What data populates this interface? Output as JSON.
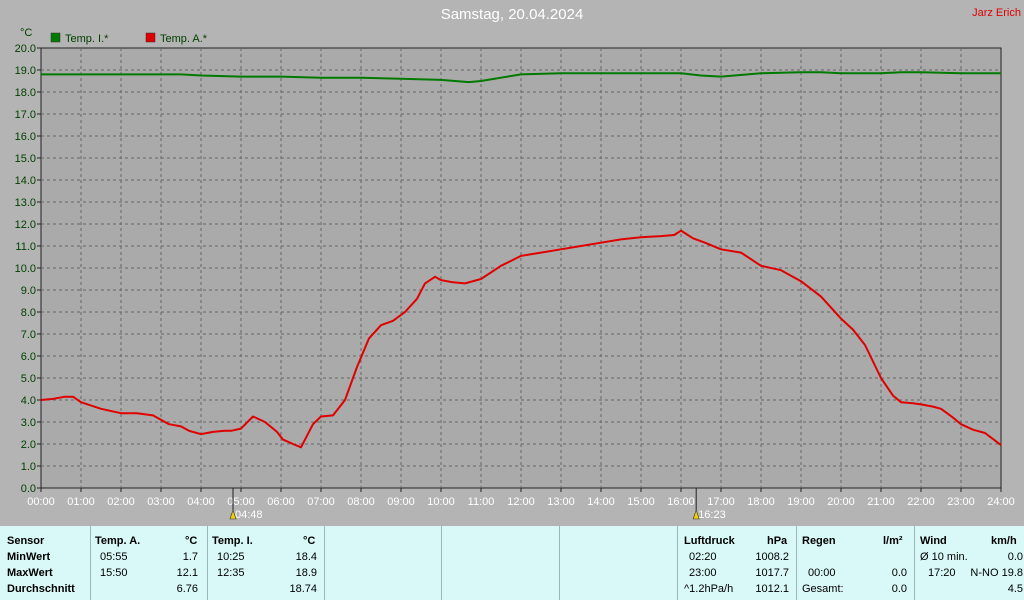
{
  "title": "Samstag, 20.04.2024",
  "author": "Jarz Erich",
  "colors": {
    "background": "#b4b4b4",
    "plot": "#aaaaaa",
    "indoor": "#007a00",
    "outdoor": "#e00000",
    "table": "#d9f8f8"
  },
  "chart_data": {
    "type": "line",
    "ylabel": "°C",
    "ylim": [
      0,
      20
    ],
    "yticks": [
      "0.0",
      "1.0",
      "2.0",
      "3.0",
      "4.0",
      "5.0",
      "6.0",
      "7.0",
      "8.0",
      "9.0",
      "10.0",
      "11.0",
      "12.0",
      "13.0",
      "14.0",
      "15.0",
      "16.0",
      "17.0",
      "18.0",
      "19.0",
      "20.0"
    ],
    "xlim": [
      0,
      24
    ],
    "xticks": [
      "00:00",
      "01:00",
      "02:00",
      "03:00",
      "04:00",
      "05:00",
      "06:00",
      "07:00",
      "08:00",
      "09:00",
      "10:00",
      "11:00",
      "12:00",
      "13:00",
      "14:00",
      "15:00",
      "16:00",
      "17:00",
      "18:00",
      "19:00",
      "20:00",
      "21:00",
      "22:00",
      "23:00",
      "24:00"
    ],
    "grid": true,
    "legend_position": "top-left",
    "sun_markers": [
      {
        "time": 4.8,
        "label": "04:48"
      },
      {
        "time": 16.38,
        "label": "16:23"
      }
    ],
    "series": [
      {
        "name": "Temp. I.*",
        "color": "#007a00",
        "x": [
          0,
          3.5,
          4,
          5,
          6,
          7,
          8,
          9,
          10,
          10.7,
          11,
          12,
          13,
          14,
          15,
          16,
          16.5,
          17,
          18,
          19,
          19.5,
          20,
          21,
          21.5,
          22,
          23,
          24
        ],
        "y": [
          18.8,
          18.8,
          18.75,
          18.7,
          18.7,
          18.65,
          18.65,
          18.6,
          18.55,
          18.45,
          18.5,
          18.8,
          18.85,
          18.85,
          18.85,
          18.85,
          18.75,
          18.7,
          18.85,
          18.9,
          18.9,
          18.85,
          18.85,
          18.9,
          18.9,
          18.85,
          18.85
        ]
      },
      {
        "name": "Temp. A.*",
        "color": "#e00000",
        "x": [
          0,
          0.3,
          0.6,
          0.8,
          1.0,
          1.5,
          2.0,
          2.4,
          2.8,
          3.2,
          3.5,
          3.7,
          4.0,
          4.3,
          4.6,
          4.75,
          5.0,
          5.3,
          5.6,
          5.9,
          6.05,
          6.3,
          6.5,
          6.8,
          7.0,
          7.3,
          7.6,
          7.9,
          8.2,
          8.5,
          8.8,
          9.1,
          9.4,
          9.6,
          9.85,
          10.0,
          10.3,
          10.6,
          11.0,
          11.5,
          12.0,
          12.5,
          13.0,
          13.5,
          14.0,
          14.5,
          15.0,
          15.5,
          15.83,
          16.0,
          16.3,
          16.6,
          17.0,
          17.5,
          18.0,
          18.5,
          19.0,
          19.5,
          20.0,
          20.3,
          20.6,
          21.0,
          21.3,
          21.5,
          21.8,
          22.0,
          22.3,
          22.5,
          22.8,
          23.0,
          23.3,
          23.6,
          24.0
        ],
        "y": [
          4.0,
          4.05,
          4.15,
          4.15,
          3.9,
          3.6,
          3.4,
          3.4,
          3.3,
          2.9,
          2.8,
          2.6,
          2.45,
          2.55,
          2.6,
          2.6,
          2.7,
          3.25,
          3.0,
          2.55,
          2.2,
          2.0,
          1.85,
          2.9,
          3.25,
          3.3,
          4.0,
          5.5,
          6.8,
          7.4,
          7.6,
          8.0,
          8.6,
          9.3,
          9.6,
          9.45,
          9.35,
          9.3,
          9.5,
          10.1,
          10.55,
          10.7,
          10.85,
          11.0,
          11.15,
          11.3,
          11.4,
          11.45,
          11.5,
          11.7,
          11.35,
          11.15,
          10.85,
          10.7,
          10.1,
          9.9,
          9.4,
          8.7,
          7.7,
          7.2,
          6.5,
          5.0,
          4.2,
          3.9,
          3.85,
          3.8,
          3.7,
          3.6,
          3.2,
          2.9,
          2.65,
          2.5,
          1.95
        ]
      }
    ]
  },
  "table": {
    "header": {
      "sensor": "Sensor",
      "ta": "Temp. A.",
      "ta_unit": "°C",
      "ti": "Temp. I.",
      "ti_unit": "°C",
      "press": "Luftdruck",
      "press_unit": "hPa",
      "rain": "Regen",
      "rain_unit": "l/m²",
      "wind": "Wind",
      "wind_unit": "km/h"
    },
    "rows": [
      {
        "label": "MinWert",
        "ta_time": "05:55",
        "ta_val": "1.7",
        "ti_time": "10:25",
        "ti_val": "18.4",
        "p_time": "02:20",
        "p_val": "1008.2",
        "r_time": "",
        "r_val": "",
        "w_time": "Ø 10 min.",
        "w_val": "0.0"
      },
      {
        "label": "MaxWert",
        "ta_time": "15:50",
        "ta_val": "12.1",
        "ti_time": "12:35",
        "ti_val": "18.9",
        "p_time": "23:00",
        "p_val": "1017.7",
        "r_time": "00:00",
        "r_val": "0.0",
        "w_time": "17:20",
        "w_val": "N-NO 19.8"
      },
      {
        "label": "Durchschnitt",
        "ta_time": "",
        "ta_val": "6.76",
        "ti_time": "",
        "ti_val": "18.74",
        "p_time": "^1.2hPa/h",
        "p_val": "1012.1",
        "r_time": "Gesamt:",
        "r_val": "0.0",
        "w_time": "",
        "w_val": "4.5"
      }
    ]
  }
}
